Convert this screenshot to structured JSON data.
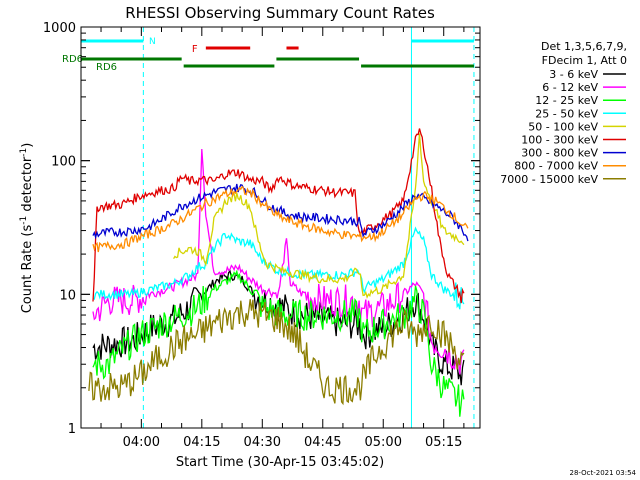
{
  "chart_data": {
    "type": "line",
    "title": "RHESSI Observing Summary Count Rates",
    "xlabel": "Start Time (30-Apr-15 03:45:02)",
    "ylabel_main": "Count Rate (s",
    "ylabel_sup1": "-1",
    "ylabel_mid": " detector",
    "ylabel_sup2": "-1",
    "ylabel_end": ")",
    "yscale": "log",
    "ylim": [
      1,
      1000
    ],
    "xlim": [
      "03:45:02",
      "05:24:00"
    ],
    "ytick_labels": [
      "1",
      "10",
      "100",
      "1000"
    ],
    "xtick_labels": [
      "04:00",
      "04:15",
      "04:30",
      "04:45",
      "05:00",
      "05:15"
    ],
    "footer": "28-Oct-2021 03:54",
    "legend": {
      "header1": "Det 1,3,5,6,7,9,",
      "header2": "FDecim 1, Att 0",
      "entries": [
        {
          "label": "3 - 6 keV",
          "color": "#000000"
        },
        {
          "label": "6 - 12 keV",
          "color": "#ff00ff"
        },
        {
          "label": "12 - 25 keV",
          "color": "#00ff00"
        },
        {
          "label": "25 - 50 keV",
          "color": "#00ffff"
        },
        {
          "label": "50 - 100 keV",
          "color": "#d4d400"
        },
        {
          "label": "100 - 300 keV",
          "color": "#e00000"
        },
        {
          "label": "300 - 800 keV",
          "color": "#0000d0"
        },
        {
          "label": "800 - 7000 keV",
          "color": "#ff8c00"
        },
        {
          "label": "7000 - 15000 keV",
          "color": "#8b7d00"
        }
      ]
    },
    "flags": [
      {
        "label": "N",
        "color": "#00ffff",
        "segments": [
          [
            "03:45:02",
            "04:00:30"
          ],
          [
            "05:07:00",
            "05:22:30"
          ]
        ]
      },
      {
        "label": "F",
        "color": "#e00000",
        "segments": [
          [
            "04:16:00",
            "04:27:00"
          ],
          [
            "04:36:00",
            "04:39:00"
          ]
        ]
      },
      {
        "label": "RD6",
        "color": "#007700",
        "segments": [
          [
            "03:45:02",
            "04:10:00"
          ],
          [
            "04:10:30",
            "04:33:00"
          ],
          [
            "04:33:30",
            "04:54:00"
          ],
          [
            "04:54:30",
            "05:22:30"
          ]
        ]
      }
    ],
    "flag_labels": {
      "rd6_left": "RD6"
    },
    "night_markers": [
      "03:45:02",
      "04:00:30",
      "05:07:00",
      "05:22:30"
    ],
    "series": [
      {
        "name": "3 - 6 keV",
        "color": "#000000",
        "points": [
          [
            "03:48",
            4
          ],
          [
            "03:58",
            4.5
          ],
          [
            "04:02",
            5.5
          ],
          [
            "04:08",
            6.5
          ],
          [
            "04:12",
            8
          ],
          [
            "04:15",
            10
          ],
          [
            "04:19",
            13
          ],
          [
            "04:22",
            14
          ],
          [
            "04:25",
            13
          ],
          [
            "04:28",
            10
          ],
          [
            "04:31",
            9
          ],
          [
            "04:35",
            8
          ],
          [
            "04:40",
            7
          ],
          [
            "04:45",
            6.5
          ],
          [
            "04:50",
            6
          ],
          [
            "04:54",
            6
          ],
          [
            "04:55",
            5
          ],
          [
            "05:00",
            5.5
          ],
          [
            "05:05",
            7
          ],
          [
            "05:08",
            9
          ],
          [
            "05:10",
            7
          ],
          [
            "05:12",
            4
          ],
          [
            "05:15",
            3
          ],
          [
            "05:20",
            2.5
          ]
        ]
      },
      {
        "name": "6 - 12 keV",
        "color": "#ff00ff",
        "points": [
          [
            "03:48",
            7
          ],
          [
            "03:52",
            9
          ],
          [
            "03:58",
            9
          ],
          [
            "04:02",
            10
          ],
          [
            "04:08",
            11.5
          ],
          [
            "04:12",
            13
          ],
          [
            "04:14",
            14
          ],
          [
            "04:15",
            130
          ],
          [
            "04:16",
            40
          ],
          [
            "04:18",
            15
          ],
          [
            "04:21",
            15
          ],
          [
            "04:24",
            16
          ],
          [
            "04:27",
            13
          ],
          [
            "04:30",
            11
          ],
          [
            "04:34",
            10
          ],
          [
            "04:36",
            25
          ],
          [
            "04:37",
            12
          ],
          [
            "04:40",
            10
          ],
          [
            "04:45",
            9
          ],
          [
            "04:50",
            9
          ],
          [
            "04:54",
            9
          ],
          [
            "04:55",
            7
          ],
          [
            "05:00",
            8
          ],
          [
            "05:05",
            10
          ],
          [
            "05:08",
            12
          ],
          [
            "05:10",
            10
          ],
          [
            "05:12",
            4.5
          ],
          [
            "05:15",
            4
          ],
          [
            "05:20",
            3
          ]
        ]
      },
      {
        "name": "12 - 25 keV",
        "color": "#00ff00",
        "points": [
          [
            "03:48",
            3
          ],
          [
            "03:52",
            3
          ],
          [
            "03:56",
            4
          ],
          [
            "04:00",
            5
          ],
          [
            "04:05",
            6
          ],
          [
            "04:10",
            7
          ],
          [
            "04:14",
            8
          ],
          [
            "04:18",
            11
          ],
          [
            "04:22",
            13
          ],
          [
            "04:24",
            14
          ],
          [
            "04:27",
            11
          ],
          [
            "04:30",
            8
          ],
          [
            "04:35",
            7
          ],
          [
            "04:40",
            7
          ],
          [
            "04:45",
            7
          ],
          [
            "04:50",
            7
          ],
          [
            "04:54",
            7
          ],
          [
            "04:55",
            5
          ],
          [
            "05:00",
            6
          ],
          [
            "05:05",
            7
          ],
          [
            "05:08",
            9
          ],
          [
            "05:10",
            7
          ],
          [
            "05:12",
            3
          ],
          [
            "05:15",
            2
          ],
          [
            "05:20",
            1.5
          ]
        ]
      },
      {
        "name": "25 - 50 keV",
        "color": "#00ffff",
        "points": [
          [
            "03:48",
            10
          ],
          [
            "03:52",
            10
          ],
          [
            "03:58",
            10
          ],
          [
            "04:03",
            11
          ],
          [
            "04:08",
            12
          ],
          [
            "04:12",
            14
          ],
          [
            "04:14",
            16
          ],
          [
            "04:16",
            17
          ],
          [
            "04:18",
            22
          ],
          [
            "04:21",
            28
          ],
          [
            "04:24",
            25
          ],
          [
            "04:27",
            24
          ],
          [
            "04:30",
            18
          ],
          [
            "04:34",
            15
          ],
          [
            "04:40",
            14
          ],
          [
            "04:45",
            14
          ],
          [
            "04:50",
            14
          ],
          [
            "04:54",
            15
          ],
          [
            "04:55",
            11
          ],
          [
            "05:00",
            13
          ],
          [
            "05:05",
            17
          ],
          [
            "05:08",
            30
          ],
          [
            "05:10",
            25
          ],
          [
            "05:12",
            14
          ],
          [
            "05:15",
            11
          ],
          [
            "05:20",
            9
          ]
        ]
      },
      {
        "name": "50 - 100 keV",
        "color": "#d4d400",
        "points": [
          [
            "04:08",
            20
          ],
          [
            "04:12",
            22
          ],
          [
            "04:14",
            21
          ],
          [
            "04:16",
            18
          ],
          [
            "04:18",
            35
          ],
          [
            "04:21",
            50
          ],
          [
            "04:24",
            55
          ],
          [
            "04:27",
            45
          ],
          [
            "04:29",
            25
          ],
          [
            "04:31",
            17
          ],
          [
            "04:35",
            15
          ],
          [
            "04:40",
            14
          ],
          [
            "04:45",
            13
          ],
          [
            "04:50",
            13
          ],
          [
            "04:54",
            15
          ],
          [
            "04:55",
            10
          ],
          [
            "05:00",
            11
          ],
          [
            "05:05",
            14
          ],
          [
            "05:08",
            60
          ],
          [
            "05:09",
            160
          ],
          [
            "05:10",
            70
          ],
          [
            "05:12",
            50
          ],
          [
            "05:15",
            30
          ],
          [
            "05:20",
            25
          ]
        ]
      },
      {
        "name": "100 - 300 keV",
        "color": "#e00000",
        "points": [
          [
            "03:48",
            7
          ],
          [
            "03:49",
            45
          ],
          [
            "03:55",
            47
          ],
          [
            "04:00",
            55
          ],
          [
            "04:05",
            60
          ],
          [
            "04:08",
            62
          ],
          [
            "04:10",
            75
          ],
          [
            "04:12",
            70
          ],
          [
            "04:15",
            72
          ],
          [
            "04:18",
            70
          ],
          [
            "04:21",
            80
          ],
          [
            "04:24",
            82
          ],
          [
            "04:27",
            72
          ],
          [
            "04:30",
            70
          ],
          [
            "04:32",
            60
          ],
          [
            "04:34",
            75
          ],
          [
            "04:38",
            65
          ],
          [
            "04:42",
            62
          ],
          [
            "04:48",
            58
          ],
          [
            "04:53",
            57
          ],
          [
            "04:54",
            28
          ],
          [
            "04:58",
            33
          ],
          [
            "05:02",
            40
          ],
          [
            "05:05",
            50
          ],
          [
            "05:08",
            140
          ],
          [
            "05:09",
            170
          ],
          [
            "05:10",
            130
          ],
          [
            "05:12",
            60
          ],
          [
            "05:14",
            25
          ],
          [
            "05:16",
            14
          ],
          [
            "05:20",
            9
          ]
        ]
      },
      {
        "name": "300 - 800 keV",
        "color": "#0000d0",
        "points": [
          [
            "03:48",
            28
          ],
          [
            "03:52",
            29
          ],
          [
            "03:58",
            30
          ],
          [
            "04:02",
            32
          ],
          [
            "04:06",
            38
          ],
          [
            "04:10",
            46
          ],
          [
            "04:14",
            52
          ],
          [
            "04:18",
            58
          ],
          [
            "04:22",
            62
          ],
          [
            "04:25",
            63
          ],
          [
            "04:28",
            58
          ],
          [
            "04:31",
            48
          ],
          [
            "04:33",
            44
          ],
          [
            "04:36",
            40
          ],
          [
            "04:40",
            38
          ],
          [
            "04:45",
            37
          ],
          [
            "04:50",
            36
          ],
          [
            "04:54",
            35
          ],
          [
            "04:55",
            28
          ],
          [
            "05:00",
            33
          ],
          [
            "05:04",
            42
          ],
          [
            "05:08",
            55
          ],
          [
            "05:10",
            52
          ],
          [
            "05:13",
            46
          ],
          [
            "05:17",
            38
          ],
          [
            "05:21",
            27
          ]
        ]
      },
      {
        "name": "800 - 7000 keV",
        "color": "#ff8c00",
        "points": [
          [
            "03:48",
            22
          ],
          [
            "03:52",
            23
          ],
          [
            "03:56",
            24
          ],
          [
            "04:00",
            27
          ],
          [
            "04:04",
            30
          ],
          [
            "04:08",
            34
          ],
          [
            "04:12",
            40
          ],
          [
            "04:16",
            48
          ],
          [
            "04:20",
            55
          ],
          [
            "04:24",
            60
          ],
          [
            "04:27",
            58
          ],
          [
            "04:30",
            48
          ],
          [
            "04:33",
            40
          ],
          [
            "04:36",
            36
          ],
          [
            "04:40",
            33
          ],
          [
            "04:45",
            30
          ],
          [
            "04:50",
            28
          ],
          [
            "04:54",
            27
          ],
          [
            "04:58",
            27
          ],
          [
            "05:02",
            33
          ],
          [
            "05:05",
            40
          ],
          [
            "05:08",
            52
          ],
          [
            "05:10",
            55
          ],
          [
            "05:13",
            50
          ],
          [
            "05:17",
            40
          ],
          [
            "05:21",
            30
          ]
        ]
      },
      {
        "name": "7000 - 15000 keV",
        "color": "#8b7d00",
        "points": [
          [
            "03:47",
            2
          ],
          [
            "03:50",
            2
          ],
          [
            "03:55",
            2
          ],
          [
            "04:00",
            2.5
          ],
          [
            "04:05",
            3.5
          ],
          [
            "04:10",
            4.5
          ],
          [
            "04:14",
            5
          ],
          [
            "04:18",
            6
          ],
          [
            "04:22",
            7
          ],
          [
            "04:26",
            7.5
          ],
          [
            "04:30",
            7
          ],
          [
            "04:34",
            6.5
          ],
          [
            "04:38",
            5
          ],
          [
            "04:42",
            3
          ],
          [
            "04:46",
            2
          ],
          [
            "04:50",
            2
          ],
          [
            "04:54",
            2
          ],
          [
            "04:58",
            3.5
          ],
          [
            "05:02",
            5
          ],
          [
            "05:05",
            6
          ],
          [
            "05:08",
            5
          ],
          [
            "05:12",
            6.5
          ],
          [
            "05:16",
            4.5
          ],
          [
            "05:20",
            3
          ]
        ]
      }
    ]
  }
}
